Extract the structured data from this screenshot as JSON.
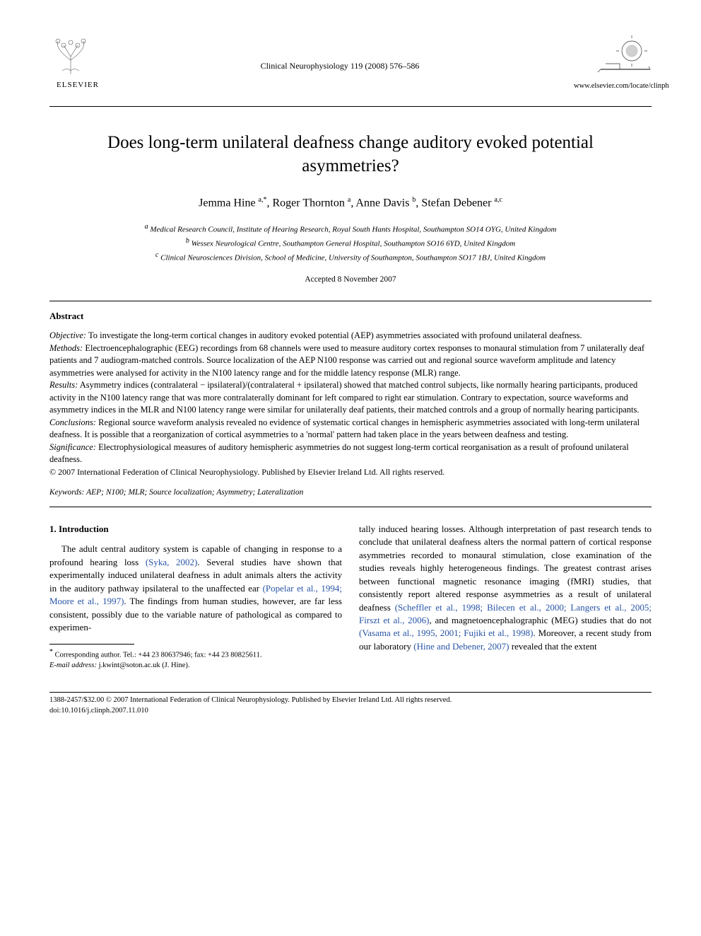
{
  "header": {
    "publisher_name": "ELSEVIER",
    "journal_reference": "Clinical Neurophysiology 119 (2008) 576–586",
    "journal_url": "www.elsevier.com/locate/clinph"
  },
  "title": "Does long-term unilateral deafness change auditory evoked potential asymmetries?",
  "authors_html": "Jemma Hine <span class='sup'>a,*</span>, Roger Thornton <span class='sup'>a</span>, Anne Davis <span class='sup'>b</span>, Stefan Debener <span class='sup'>a,c</span>",
  "affiliations": {
    "a": "Medical Research Council, Institute of Hearing Research, Royal South Hants Hospital, Southampton SO14 OYG, United Kingdom",
    "b": "Wessex Neurological Centre, Southampton General Hospital, Southampton SO16 6YD, United Kingdom",
    "c": "Clinical Neurosciences Division, School of Medicine, University of Southampton, Southampton SO17 1BJ, United Kingdom"
  },
  "accepted": "Accepted 8 November 2007",
  "abstract": {
    "heading": "Abstract",
    "objective_label": "Objective:",
    "objective": " To investigate the long-term cortical changes in auditory evoked potential (AEP) asymmetries associated with profound unilateral deafness.",
    "methods_label": "Methods:",
    "methods": " Electroencephalographic (EEG) recordings from 68 channels were used to measure auditory cortex responses to monaural stimulation from 7 unilaterally deaf patients and 7 audiogram-matched controls. Source localization of the AEP N100 response was carried out and regional source waveform amplitude and latency asymmetries were analysed for activity in the N100 latency range and for the middle latency response (MLR) range.",
    "results_label": "Results:",
    "results": " Asymmetry indices (contralateral − ipsilateral)/(contralateral + ipsilateral) showed that matched control subjects, like normally hearing participants, produced activity in the N100 latency range that was more contralaterally dominant for left compared to right ear stimulation. Contrary to expectation, source waveforms and asymmetry indices in the MLR and N100 latency range were similar for unilaterally deaf patients, their matched controls and a group of normally hearing participants.",
    "conclusions_label": "Conclusions:",
    "conclusions": " Regional source waveform analysis revealed no evidence of systematic cortical changes in hemispheric asymmetries associated with long-term unilateral deafness. It is possible that a reorganization of cortical asymmetries to a 'normal' pattern had taken place in the years between deafness and testing.",
    "significance_label": "Significance:",
    "significance": " Electrophysiological measures of auditory hemispheric asymmetries do not suggest long-term cortical reorganisation as a result of profound unilateral deafness.",
    "copyright": "© 2007 International Federation of Clinical Neurophysiology. Published by Elsevier Ireland Ltd. All rights reserved."
  },
  "keywords": {
    "label": "Keywords:",
    "text": " AEP; N100; MLR; Source localization; Asymmetry; Lateralization"
  },
  "intro": {
    "heading": "1. Introduction",
    "p1_a": "The adult central auditory system is capable of changing in response to a profound hearing loss ",
    "p1_cite1": "(Syka, 2002)",
    "p1_b": ". Several studies have shown that experimentally induced unilateral deafness in adult animals alters the activity in the auditory pathway ipsilateral to the unaffected ear ",
    "p1_cite2": "(Popelar et al., 1994; Moore et al., 1997)",
    "p1_c": ". The findings from human studies, however, are far less consistent, possibly due to the variable nature of pathological as compared to experimen-",
    "p2_a": "tally induced hearing losses. Although interpretation of past research tends to conclude that unilateral deafness alters the normal pattern of cortical response asymmetries recorded to monaural stimulation, close examination of the studies reveals highly heterogeneous findings. The greatest contrast arises between functional magnetic resonance imaging (fMRI) studies, that consistently report altered response asymmetries as a result of unilateral deafness ",
    "p2_cite1": "(Scheffler et al., 1998; Bilecen et al., 2000; Langers et al., 2005; Firszt et al., 2006)",
    "p2_b": ", and magnetoencephalographic (MEG) studies that do not ",
    "p2_cite2": "(Vasama et al., 1995, 2001; Fujiki et al., 1998)",
    "p2_c": ". Moreover, a recent study from our laboratory ",
    "p2_cite3": "(Hine and Debener, 2007)",
    "p2_d": " revealed that the extent"
  },
  "footnote": {
    "line1": "Corresponding author. Tel.: +44 23 80637946; fax: +44 23 80825611.",
    "line2_label": "E-mail address:",
    "line2_email": " j.kwint@soton.ac.uk",
    "line2_tail": " (J. Hine)."
  },
  "footer": {
    "line1": "1388-2457/$32.00 © 2007 International Federation of Clinical Neurophysiology. Published by Elsevier Ireland Ltd. All rights reserved.",
    "line2": "doi:10.1016/j.clinph.2007.11.010"
  },
  "colors": {
    "text": "#000000",
    "background": "#ffffff",
    "cite": "#2754a6"
  }
}
